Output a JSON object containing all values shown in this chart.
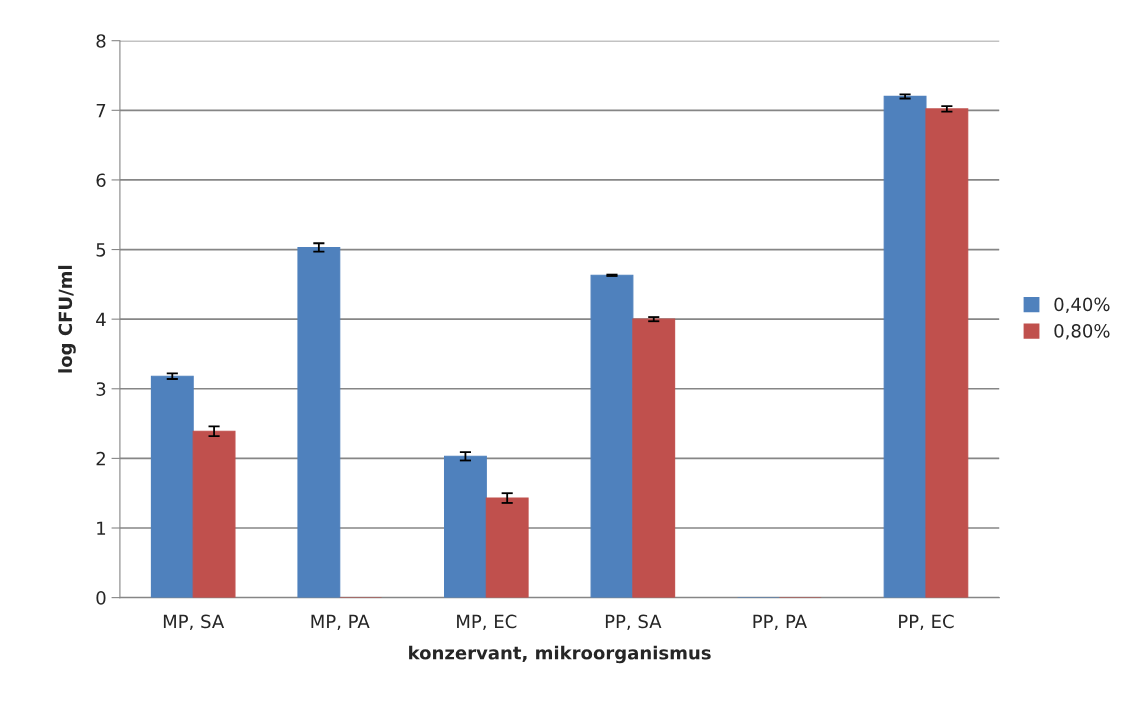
{
  "chart_data": {
    "type": "bar",
    "xlabel": "konzervant, mikroorganismus",
    "ylabel": "log CFU/ml",
    "categories": [
      "MP, SA",
      "MP, PA",
      "MP, EC",
      "PP, SA",
      "PP, PA",
      "PP, EC"
    ],
    "series": [
      {
        "name": "0,40%",
        "color": "#4f81bd",
        "values": [
          3.18,
          5.03,
          2.03,
          4.63,
          0,
          7.2
        ],
        "errors": [
          0.04,
          0.06,
          0.06,
          0.01,
          null,
          0.03
        ]
      },
      {
        "name": "0,80%",
        "color": "#c0504d",
        "values": [
          2.39,
          0,
          1.43,
          4.0,
          0,
          7.02
        ],
        "errors": [
          0.07,
          null,
          0.07,
          0.03,
          null,
          0.04
        ]
      }
    ],
    "ylim": [
      0,
      8
    ],
    "yticks": [
      0,
      1,
      2,
      3,
      4,
      5,
      6,
      7,
      8
    ],
    "grid": "y",
    "legend": "right"
  }
}
